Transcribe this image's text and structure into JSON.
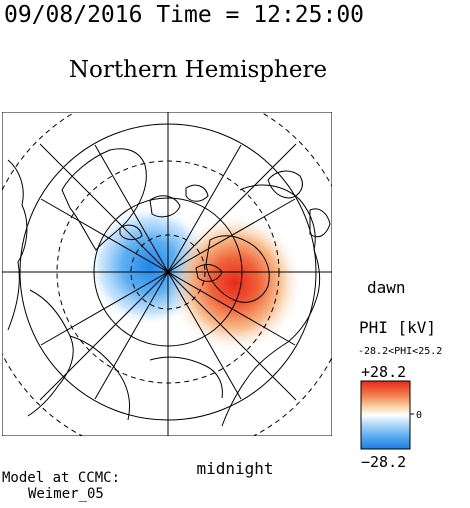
{
  "header": {
    "timestamp": "09/08/2016 Time = 12:25:00",
    "title": "Northern Hemisphere"
  },
  "map": {
    "labels": {
      "dawn": "dawn",
      "midnight": "midnight"
    }
  },
  "legend": {
    "title": "PHI [kV]",
    "range_text": "-28.2<PHI<25.2",
    "max_label": "+28.2",
    "min_label": "−28.2",
    "zero_label": "0",
    "phi_min": -28.2,
    "phi_max": 25.2,
    "scale_min": -28.2,
    "scale_max": 28.2
  },
  "footer": {
    "model_line1": "Model at CCMC:",
    "model_line2": "Weimer_05"
  },
  "colors": {
    "positive": "#e8311f",
    "negative": "#2a8ee8",
    "neutral": "#ffffff",
    "line": "#000000"
  }
}
